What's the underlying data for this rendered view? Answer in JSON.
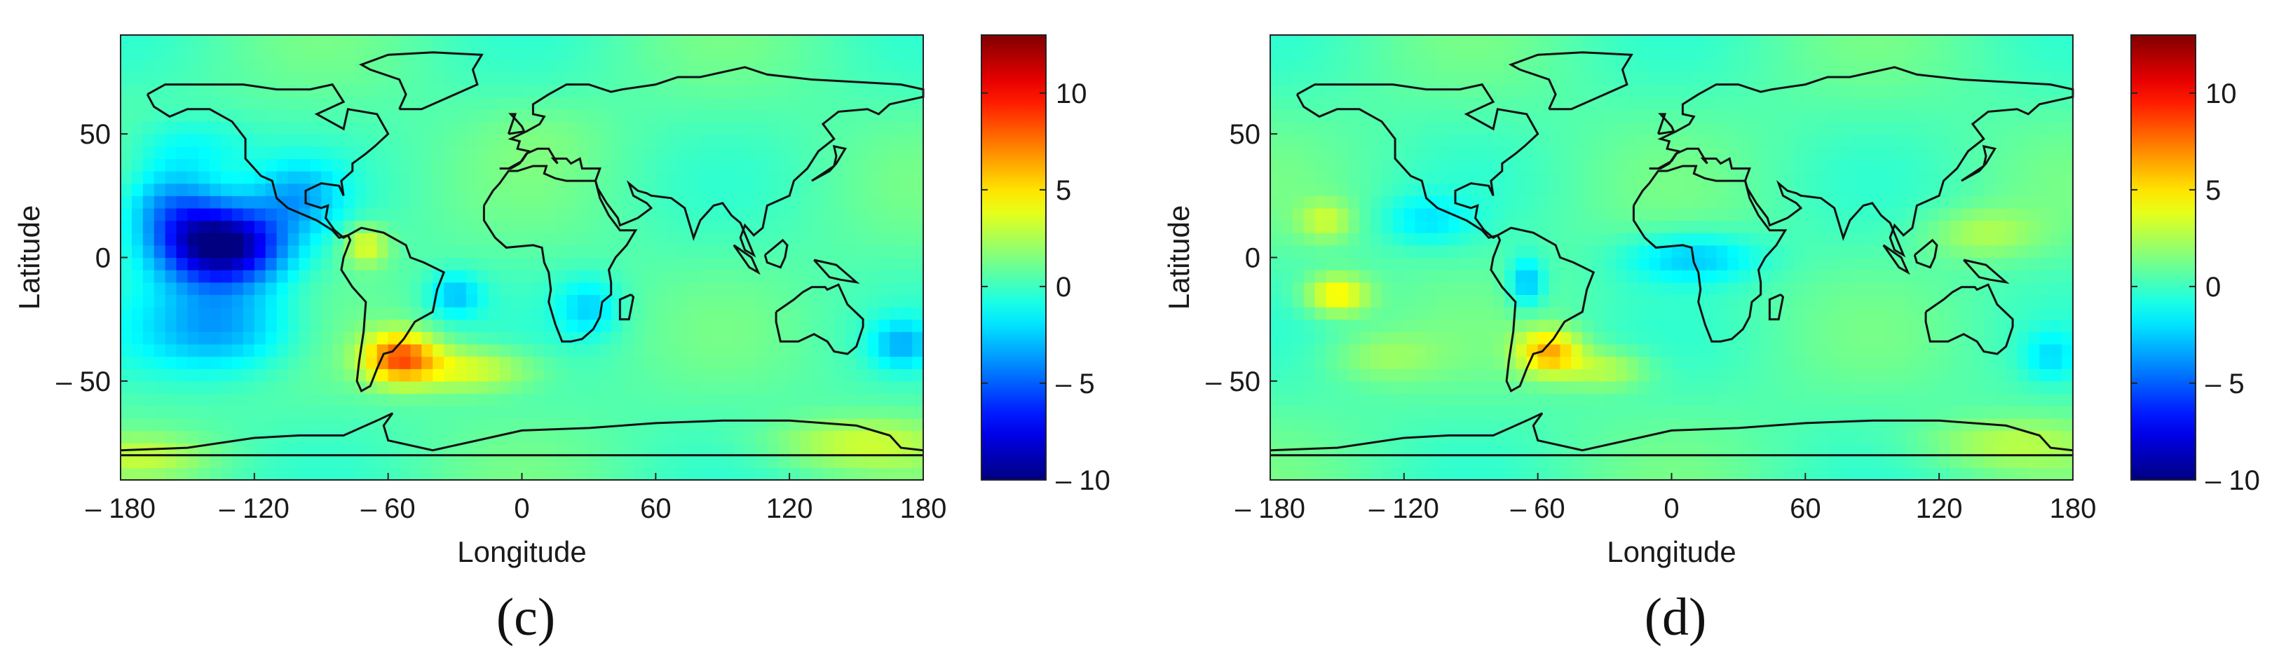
{
  "figure": {
    "panels": [
      {
        "label": "(c)"
      },
      {
        "label": "(d)"
      }
    ]
  },
  "chart_data": [
    {
      "type": "heatmap",
      "panel": "(c)",
      "xlabel": "Longitude",
      "ylabel": "Latitude",
      "xlim": [
        -180,
        180
      ],
      "ylim": [
        -90,
        90
      ],
      "xticks": [
        -180,
        -120,
        -60,
        0,
        60,
        120,
        180
      ],
      "xtick_labels": [
        "– 180",
        "– 120",
        "– 60",
        "0",
        "60",
        "120",
        "180"
      ],
      "yticks": [
        50,
        0,
        -50
      ],
      "ytick_labels": [
        "50",
        "0",
        "– 50"
      ],
      "colorbar": {
        "colormap": "jet",
        "range": [
          -10,
          13
        ],
        "ticks": [
          -10,
          -5,
          0,
          5,
          10
        ],
        "tick_labels": [
          "– 10",
          "– 5",
          "0",
          "5",
          "10"
        ]
      },
      "background_value": 0.5,
      "anomalies": [
        {
          "lon": -135,
          "lat": 5,
          "value": -10.5,
          "rlon": 28,
          "rlat": 16
        },
        {
          "lon": -158,
          "lat": 22,
          "value": -3.5,
          "rlon": 22,
          "rlat": 16
        },
        {
          "lon": -135,
          "lat": -28,
          "value": -3.5,
          "rlon": 35,
          "rlat": 18
        },
        {
          "lon": -100,
          "lat": 25,
          "value": -2.5,
          "rlon": 20,
          "rlat": 14
        },
        {
          "lon": -150,
          "lat": 45,
          "value": -1.2,
          "rlon": 28,
          "rlat": 12
        },
        {
          "lon": -55,
          "lat": -40,
          "value": 7.5,
          "rlon": 16,
          "rlat": 10
        },
        {
          "lon": -25,
          "lat": -45,
          "value": 4,
          "rlon": 30,
          "rlat": 9
        },
        {
          "lon": -70,
          "lat": 5,
          "value": 4,
          "rlon": 10,
          "rlat": 8
        },
        {
          "lon": -30,
          "lat": -15,
          "value": -2.5,
          "rlon": 12,
          "rlat": 9
        },
        {
          "lon": 30,
          "lat": -20,
          "value": -2,
          "rlon": 14,
          "rlat": 12
        },
        {
          "lon": 170,
          "lat": -35,
          "value": -2.5,
          "rlon": 14,
          "rlat": 10
        },
        {
          "lon": 150,
          "lat": -75,
          "value": 3,
          "rlon": 40,
          "rlat": 10
        },
        {
          "lon": -170,
          "lat": -80,
          "value": 2.5,
          "rlon": 30,
          "rlat": 8
        },
        {
          "lon": 10,
          "lat": 50,
          "value": 1,
          "rlon": 30,
          "rlat": 15
        }
      ]
    },
    {
      "type": "heatmap",
      "panel": "(d)",
      "xlabel": "Longitude",
      "ylabel": "Latitude",
      "xlim": [
        -180,
        180
      ],
      "ylim": [
        -90,
        90
      ],
      "xticks": [
        -180,
        -120,
        -60,
        0,
        60,
        120,
        180
      ],
      "xtick_labels": [
        "– 180",
        "– 120",
        "– 60",
        "0",
        "60",
        "120",
        "180"
      ],
      "yticks": [
        50,
        0,
        -50
      ],
      "ytick_labels": [
        "50",
        "0",
        "– 50"
      ],
      "colorbar": {
        "colormap": "jet",
        "range": [
          -10,
          13
        ],
        "ticks": [
          -10,
          -5,
          0,
          5,
          10
        ],
        "tick_labels": [
          "– 10",
          "– 5",
          "0",
          "5",
          "10"
        ]
      },
      "background_value": 0.5,
      "anomalies": [
        {
          "lon": -150,
          "lat": -15,
          "value": 5,
          "rlon": 14,
          "rlat": 8
        },
        {
          "lon": -155,
          "lat": 15,
          "value": 3,
          "rlon": 12,
          "rlat": 8
        },
        {
          "lon": -55,
          "lat": -38,
          "value": 6,
          "rlon": 14,
          "rlat": 9
        },
        {
          "lon": -30,
          "lat": -45,
          "value": 3,
          "rlon": 20,
          "rlat": 8
        },
        {
          "lon": -65,
          "lat": -10,
          "value": -3,
          "rlon": 8,
          "rlat": 10
        },
        {
          "lon": 10,
          "lat": 0,
          "value": -2.5,
          "rlon": 30,
          "rlat": 10
        },
        {
          "lon": 140,
          "lat": 10,
          "value": 2.5,
          "rlon": 25,
          "rlat": 10
        },
        {
          "lon": -110,
          "lat": 15,
          "value": -1.5,
          "rlon": 20,
          "rlat": 10
        },
        {
          "lon": 150,
          "lat": -75,
          "value": 2.5,
          "rlon": 40,
          "rlat": 10
        },
        {
          "lon": 170,
          "lat": -40,
          "value": -1.5,
          "rlon": 12,
          "rlat": 10
        },
        {
          "lon": -130,
          "lat": -40,
          "value": 2,
          "rlon": 25,
          "rlat": 10
        }
      ]
    }
  ]
}
